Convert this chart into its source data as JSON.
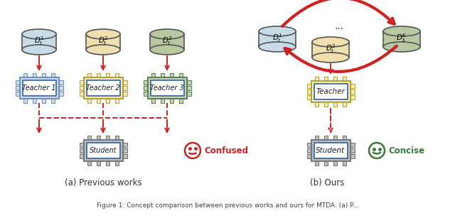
{
  "bg_color": "#ffffff",
  "left_panel": {
    "title": "(a) Previous works",
    "db_colors": [
      "#c8dce8",
      "#f0e0b0",
      "#b8c8a0"
    ],
    "db_labels": [
      "$D_t^1$",
      "$D_t^2$",
      "$D_t^3$"
    ],
    "teacher_colors": [
      "#d0dff0",
      "#f5efc8",
      "#c8d8b8"
    ],
    "teacher_border_colors": [
      "#7090b8",
      "#b8a030",
      "#608050"
    ],
    "teacher_labels": [
      "Teacher 1",
      "Teacher 2",
      "Teacher 3"
    ],
    "student_label": "Student",
    "confused_text": "Confused",
    "confused_color": "#cc2222"
  },
  "right_panel": {
    "title": "(b) Ours",
    "db_colors": [
      "#c8dce8",
      "#f0e0b0",
      "#b8c8a0"
    ],
    "db_labels": [
      "$D_t^1$",
      "$D_t^2$",
      "$D_3^K$"
    ],
    "teacher_color": "#f5efc8",
    "teacher_border_color": "#b8a030",
    "teacher_label": "Teacher",
    "student_label": "Student",
    "concise_text": "Concise",
    "concise_color": "#3a7a3a"
  },
  "arrow_color": "#cc2222",
  "dashed_arrow_color": "#cc2222",
  "circ_arrow_color": "#cc2222"
}
